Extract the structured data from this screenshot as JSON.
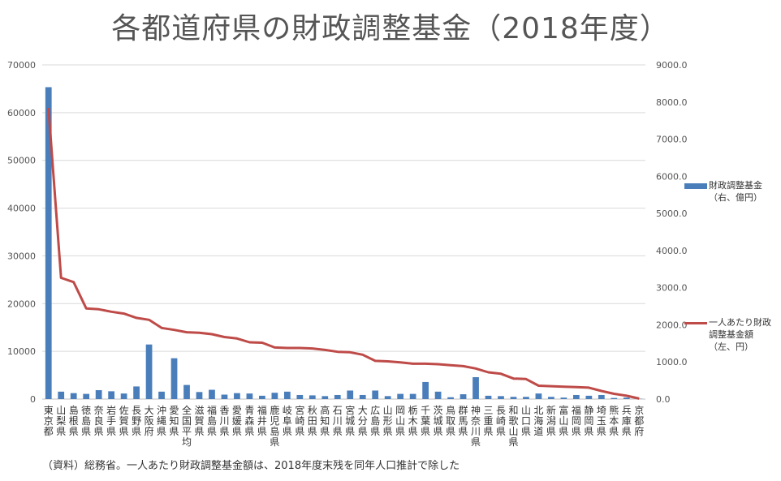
{
  "title": "各都道府県の財政調整基金（2018年度）",
  "source_note": "（資料）総務省。一人あたり財政調整基金額は、2018年度末残を同年人口推計で除した",
  "legend": {
    "bar_line1": "財政調整基金",
    "bar_line2": "（右、億円）",
    "line_line1": "一人あたり財政",
    "line_line2": "調整基金額",
    "line_line3": "（左、円）"
  },
  "colors": {
    "bar": "#4a7ebb",
    "line": "#be4b48",
    "grid": "#d9d9d9"
  },
  "chart_data": {
    "type": "bar",
    "title": "各都道府県の財政調整基金（2018年度）",
    "categories": [
      "東京都",
      "山梨県",
      "島根県",
      "徳島県",
      "奈良県",
      "岩手県",
      "佐賀県",
      "長野県",
      "大阪府",
      "沖縄県",
      "愛知県",
      "全国平均",
      "滋賀県",
      "福島県",
      "香川県",
      "愛媛県",
      "青森県",
      "福井県",
      "鹿児島県",
      "岐阜県",
      "宮崎県",
      "秋田県",
      "高知県",
      "石川県",
      "宮城県",
      "大分県",
      "広島県",
      "山形県",
      "岡山県",
      "栃木県",
      "千葉県",
      "茨城県",
      "鳥取県",
      "群馬県",
      "神奈川県",
      "三重県",
      "長崎県",
      "和歌山県",
      "山口県",
      "北海道",
      "新潟県",
      "富山県",
      "福岡県",
      "静岡県",
      "埼玉県",
      "熊本県",
      "兵庫県",
      "京都府"
    ],
    "y_left": {
      "ticks": [
        "0",
        "10000",
        "20000",
        "30000",
        "40000",
        "50000",
        "60000",
        "70000"
      ],
      "ylim": [
        0,
        70000
      ]
    },
    "y_right": {
      "ticks": [
        "0.0",
        "1000.0",
        "2000.0",
        "3000.0",
        "4000.0",
        "5000.0",
        "6000.0",
        "7000.0",
        "8000.0",
        "9000.0"
      ],
      "ylim": [
        0,
        9000
      ]
    },
    "series": [
      {
        "name": "財政調整基金（右、億円）",
        "axis": "right",
        "type": "bar",
        "values": [
          8400,
          200,
          160,
          140,
          240,
          210,
          150,
          340,
          1470,
          200,
          1100,
          380,
          190,
          250,
          120,
          160,
          150,
          90,
          170,
          200,
          110,
          100,
          80,
          110,
          230,
          110,
          230,
          80,
          140,
          140,
          460,
          200,
          50,
          130,
          590,
          90,
          80,
          60,
          60,
          150,
          60,
          40,
          110,
          90,
          110,
          30,
          40,
          10
        ]
      },
      {
        "name": "一人あたり財政調整基金額（左、円）",
        "axis": "left",
        "type": "line",
        "values": [
          61000,
          25400,
          24500,
          19000,
          18800,
          18300,
          17900,
          17000,
          16600,
          14900,
          14500,
          14000,
          13900,
          13600,
          13000,
          12700,
          11900,
          11800,
          10800,
          10700,
          10700,
          10600,
          10300,
          9900,
          9800,
          9300,
          8000,
          7900,
          7700,
          7400,
          7400,
          7300,
          7100,
          6900,
          6400,
          5600,
          5300,
          4300,
          4200,
          2800,
          2700,
          2600,
          2500,
          2400,
          1700,
          1100,
          700,
          100
        ]
      }
    ],
    "legend_position": "right",
    "grid": true
  }
}
